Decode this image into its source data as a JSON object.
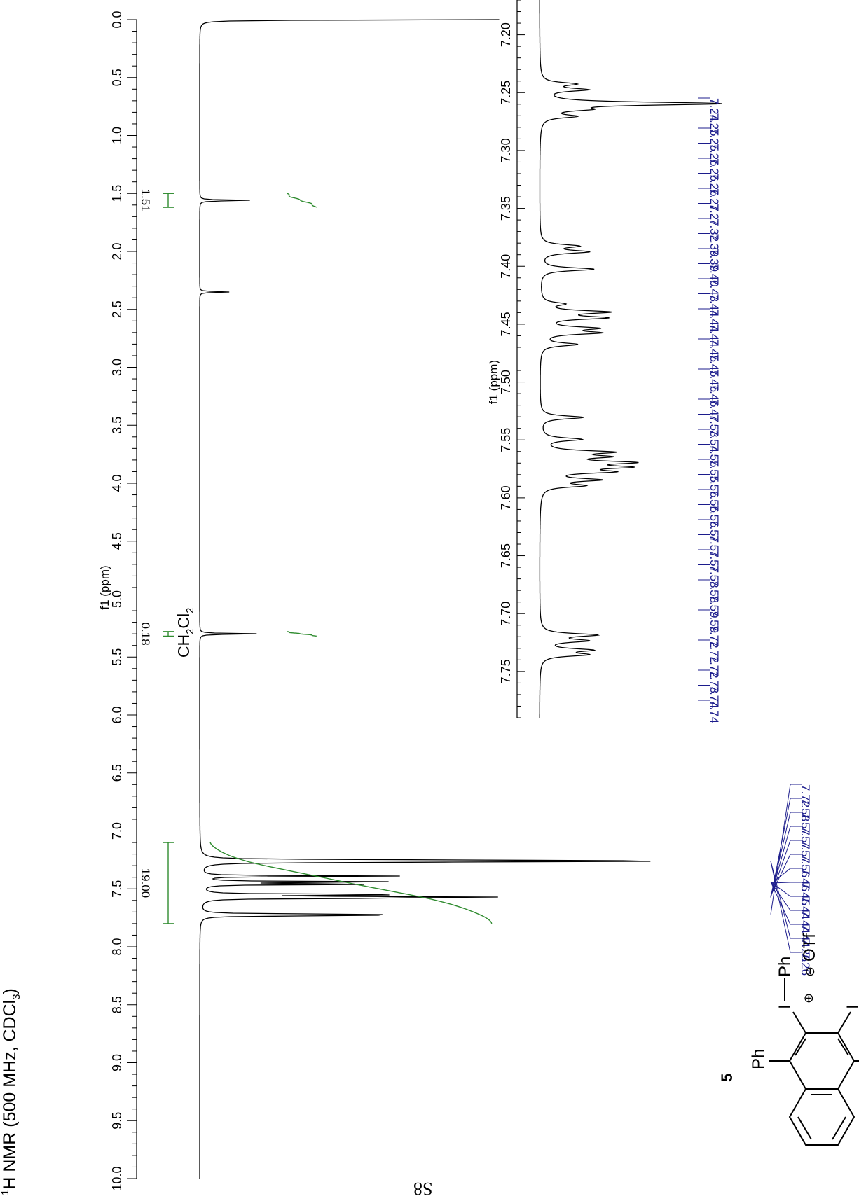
{
  "page": {
    "page_number": "S8"
  },
  "compound": {
    "label": "5",
    "substituent_top": "Ph",
    "substituent_bottom": "Ph",
    "iodo": "I",
    "iodonium": "I",
    "iodonium_ph": "Ph",
    "counterion": "OTf",
    "plus": "⊕",
    "minus": "⊖"
  },
  "colors": {
    "spectrum": "#000000",
    "peak_labels": "#1c1c8c",
    "integral": "#2e8b2e"
  },
  "chart_data": [
    {
      "type": "line",
      "title": "1H NMR (500 MHz, CDCl3)",
      "title_parts": {
        "sup": "1",
        "nucleus": "H NMR (500 MHz, CDCl",
        "sub": "3",
        "close": ")"
      },
      "xlabel": "f1 (ppm)",
      "xlim": [
        10.0,
        0.0
      ],
      "x_reversed": true,
      "xticks": [
        "10.0",
        "9.5",
        "9.0",
        "8.5",
        "8.0",
        "7.5",
        "7.0",
        "6.5",
        "6.0",
        "5.5",
        "5.0",
        "4.5",
        "4.0",
        "3.5",
        "3.0",
        "2.5",
        "2.0",
        "1.5",
        "1.0",
        "0.5",
        "0.0"
      ],
      "solvent_annotation": {
        "text": "CH2Cl2",
        "parts": [
          "CH",
          "2",
          "Cl",
          "2"
        ],
        "ppm": 5.3
      },
      "peaks": [
        {
          "ppm": 7.26,
          "height": 1.0
        },
        {
          "ppm": 7.25,
          "height": 0.28
        },
        {
          "ppm": 7.27,
          "height": 0.26
        },
        {
          "ppm": 7.39,
          "height": 0.33
        },
        {
          "ppm": 7.44,
          "height": 0.37
        },
        {
          "ppm": 7.46,
          "height": 0.34
        },
        {
          "ppm": 7.55,
          "height": 0.43
        },
        {
          "ppm": 7.57,
          "height": 0.45
        },
        {
          "ppm": 7.58,
          "height": 0.35
        },
        {
          "ppm": 7.72,
          "height": 0.31
        },
        {
          "ppm": 7.73,
          "height": 0.29
        },
        {
          "ppm": 0.0,
          "height": 0.5
        },
        {
          "ppm": 1.56,
          "height": 0.09
        },
        {
          "ppm": 2.35,
          "height": 0.05
        },
        {
          "ppm": 5.3,
          "height": 0.1
        }
      ],
      "integrals": [
        {
          "from": 7.1,
          "to": 7.8,
          "value": "19.00"
        },
        {
          "from": 1.5,
          "to": 1.62,
          "value": "1.51"
        },
        {
          "from": 5.28,
          "to": 5.32,
          "value": "0.18"
        }
      ],
      "peak_labels": [
        "7.26",
        "7.26",
        "7.44",
        "7.44",
        "7.44",
        "7.45",
        "7.46",
        "7.56",
        "7.57",
        "7.57",
        "7.57",
        "7.58",
        "7.72"
      ]
    },
    {
      "type": "line",
      "title": "",
      "xlabel": "f1 (ppm)",
      "xlim": [
        7.79,
        7.17
      ],
      "x_reversed": true,
      "xticks": [
        "7.75",
        "7.70",
        "7.65",
        "7.60",
        "7.55",
        "7.50",
        "7.45",
        "7.40",
        "7.35",
        "7.30",
        "7.25",
        "7.20"
      ],
      "peaks": [
        {
          "ppm": 7.2425,
          "height": 0.18
        },
        {
          "ppm": 7.2475,
          "height": 0.24
        },
        {
          "ppm": 7.2595,
          "height": 1.0
        },
        {
          "ppm": 7.2645,
          "height": 0.2
        },
        {
          "ppm": 7.2705,
          "height": 0.18
        },
        {
          "ppm": 7.3825,
          "height": 0.2
        },
        {
          "ppm": 7.3875,
          "height": 0.26
        },
        {
          "ppm": 7.4025,
          "height": 0.3
        },
        {
          "ppm": 7.4325,
          "height": 0.12
        },
        {
          "ppm": 7.4395,
          "height": 0.36
        },
        {
          "ppm": 7.4445,
          "height": 0.34
        },
        {
          "ppm": 7.4535,
          "height": 0.28
        },
        {
          "ppm": 7.4575,
          "height": 0.3
        },
        {
          "ppm": 7.4675,
          "height": 0.2
        },
        {
          "ppm": 7.5305,
          "height": 0.24
        },
        {
          "ppm": 7.5495,
          "height": 0.22
        },
        {
          "ppm": 7.5605,
          "height": 0.36
        },
        {
          "ppm": 7.5645,
          "height": 0.3
        },
        {
          "ppm": 7.5695,
          "height": 0.44
        },
        {
          "ppm": 7.5735,
          "height": 0.4
        },
        {
          "ppm": 7.5775,
          "height": 0.34
        },
        {
          "ppm": 7.5845,
          "height": 0.3
        },
        {
          "ppm": 7.5895,
          "height": 0.22
        },
        {
          "ppm": 7.7185,
          "height": 0.3
        },
        {
          "ppm": 7.7235,
          "height": 0.24
        },
        {
          "ppm": 7.7315,
          "height": 0.26
        },
        {
          "ppm": 7.7355,
          "height": 0.24
        }
      ],
      "peak_labels": [
        "7.74",
        "7.74",
        "7.73",
        "7.72",
        "7.72",
        "7.72",
        "7.59",
        "7.59",
        "7.58",
        "7.58",
        "7.57",
        "7.57",
        "7.57",
        "7.56",
        "7.56",
        "7.56",
        "7.55",
        "7.55",
        "7.54",
        "7.53",
        "7.47",
        "7.46",
        "7.46",
        "7.45",
        "7.45",
        "7.44",
        "7.44",
        "7.44",
        "7.43",
        "7.40",
        "7.39",
        "7.39",
        "7.32",
        "7.27",
        "7.27",
        "7.26",
        "7.26",
        "7.26",
        "7.25",
        "7.25",
        "7.24"
      ]
    }
  ]
}
